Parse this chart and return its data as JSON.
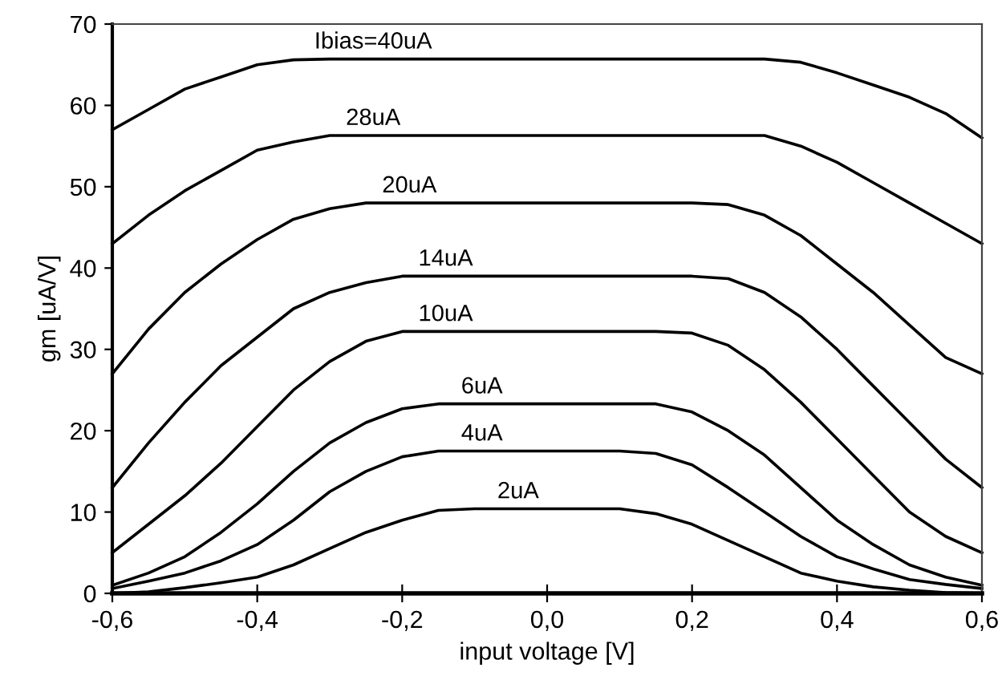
{
  "chart_data": {
    "type": "line",
    "xlabel": "input voltage [V]",
    "ylabel": "gm [uA/V]",
    "x": [
      -0.6,
      -0.55,
      -0.5,
      -0.45,
      -0.4,
      -0.35,
      -0.3,
      -0.25,
      -0.2,
      -0.15,
      -0.1,
      -0.05,
      0,
      0.05,
      0.1,
      0.15,
      0.2,
      0.25,
      0.3,
      0.35,
      0.4,
      0.45,
      0.5,
      0.55,
      0.6
    ],
    "xlim": [
      -0.6,
      0.6
    ],
    "xticks": [
      {
        "value": -0.6,
        "label": "-0,6"
      },
      {
        "value": -0.4,
        "label": "-0,4"
      },
      {
        "value": -0.2,
        "label": "-0,2"
      },
      {
        "value": 0,
        "label": "0,0"
      },
      {
        "value": 0.2,
        "label": "0,2"
      },
      {
        "value": 0.4,
        "label": "0,4"
      },
      {
        "value": 0.6,
        "label": "0,6"
      }
    ],
    "ylim": [
      0,
      70
    ],
    "yticks": [
      0,
      10,
      20,
      30,
      40,
      50,
      60,
      70
    ],
    "grid": false,
    "legend": false,
    "marker": "none",
    "line_style": "solid",
    "series": [
      {
        "name": "Ibias=40uA",
        "color": "#000000",
        "values": [
          57,
          59.5,
          62,
          63.5,
          65,
          65.6,
          65.7,
          65.7,
          65.7,
          65.7,
          65.7,
          65.7,
          65.7,
          65.7,
          65.7,
          65.7,
          65.7,
          65.7,
          65.7,
          65.3,
          64,
          62.5,
          61,
          59,
          56
        ]
      },
      {
        "name": "28uA",
        "color": "#000000",
        "values": [
          43,
          46.5,
          49.5,
          52,
          54.5,
          55.5,
          56.3,
          56.3,
          56.3,
          56.3,
          56.3,
          56.3,
          56.3,
          56.3,
          56.3,
          56.3,
          56.3,
          56.3,
          56.3,
          55,
          53,
          50.5,
          48,
          45.5,
          43
        ]
      },
      {
        "name": "20uA",
        "color": "#000000",
        "values": [
          27,
          32.5,
          37,
          40.5,
          43.5,
          46,
          47.3,
          48,
          48,
          48,
          48,
          48,
          48,
          48,
          48,
          48,
          48,
          47.8,
          46.5,
          44,
          40.5,
          37,
          33,
          29,
          27
        ]
      },
      {
        "name": "14uA",
        "color": "#000000",
        "values": [
          13,
          18.5,
          23.5,
          28,
          31.5,
          35,
          37,
          38.2,
          39,
          39,
          39,
          39,
          39,
          39,
          39,
          39,
          39,
          38.7,
          37,
          34,
          30,
          25.5,
          21,
          16.5,
          13
        ]
      },
      {
        "name": "10uA",
        "color": "#000000",
        "values": [
          5,
          8.5,
          12,
          16,
          20.5,
          25,
          28.5,
          31,
          32.2,
          32.2,
          32.2,
          32.2,
          32.2,
          32.2,
          32.2,
          32.2,
          32,
          30.5,
          27.5,
          23.5,
          19,
          14.5,
          10,
          7,
          5
        ]
      },
      {
        "name": "6uA",
        "color": "#000000",
        "values": [
          1,
          2.5,
          4.5,
          7.5,
          11,
          15,
          18.5,
          21,
          22.7,
          23.3,
          23.3,
          23.3,
          23.3,
          23.3,
          23.3,
          23.3,
          22.3,
          20,
          17,
          13,
          9,
          6,
          3.5,
          2,
          1
        ]
      },
      {
        "name": "4uA",
        "color": "#000000",
        "values": [
          0.6,
          1.5,
          2.5,
          4,
          6,
          9,
          12.5,
          15,
          16.8,
          17.5,
          17.5,
          17.5,
          17.5,
          17.5,
          17.5,
          17.2,
          15.8,
          13,
          10,
          7,
          4.5,
          3,
          1.7,
          1.1,
          0.6
        ]
      },
      {
        "name": "2uA",
        "color": "#000000",
        "values": [
          0,
          0.2,
          0.7,
          1.3,
          2,
          3.5,
          5.5,
          7.5,
          9,
          10.2,
          10.4,
          10.4,
          10.4,
          10.4,
          10.4,
          9.8,
          8.5,
          6.5,
          4.5,
          2.5,
          1.5,
          0.8,
          0.4,
          0.1,
          0
        ]
      }
    ]
  }
}
